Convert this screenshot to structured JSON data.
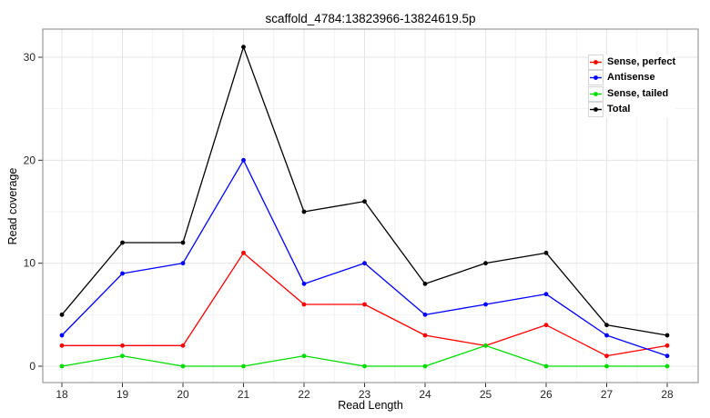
{
  "chart_data": {
    "type": "line",
    "title": "scaffold_4784:13823966-13824619.5p",
    "xlabel": "Read Length",
    "ylabel": "Read coverage",
    "x": [
      18,
      19,
      20,
      21,
      22,
      23,
      24,
      25,
      26,
      27,
      28
    ],
    "xticks": [
      18,
      19,
      20,
      21,
      22,
      23,
      24,
      25,
      26,
      27,
      28
    ],
    "yticks": [
      0,
      10,
      20,
      30
    ],
    "ylim": [
      0,
      31
    ],
    "grid": "major and minor on, light gray",
    "legend_position": "top-right inside panel",
    "series": [
      {
        "name": "Sense, perfect",
        "color": "#ff0000",
        "values": [
          2,
          2,
          2,
          11,
          6,
          6,
          3,
          2,
          4,
          1,
          2
        ]
      },
      {
        "name": "Antisense",
        "color": "#0000ff",
        "values": [
          3,
          9,
          10,
          20,
          8,
          10,
          5,
          6,
          7,
          3,
          1
        ]
      },
      {
        "name": "Sense, tailed",
        "color": "#00dd00",
        "values": [
          0,
          1,
          0,
          0,
          1,
          0,
          0,
          2,
          0,
          0,
          0
        ]
      },
      {
        "name": "Total",
        "color": "#000000",
        "values": [
          5,
          12,
          12,
          31,
          15,
          16,
          8,
          10,
          11,
          4,
          3
        ]
      }
    ],
    "colors": {
      "panel_border": "#999999",
      "grid_major": "#e4e4e4",
      "grid_minor": "#f2f2f2",
      "tick_mark": "#333333",
      "tick_label": "#262626"
    }
  }
}
